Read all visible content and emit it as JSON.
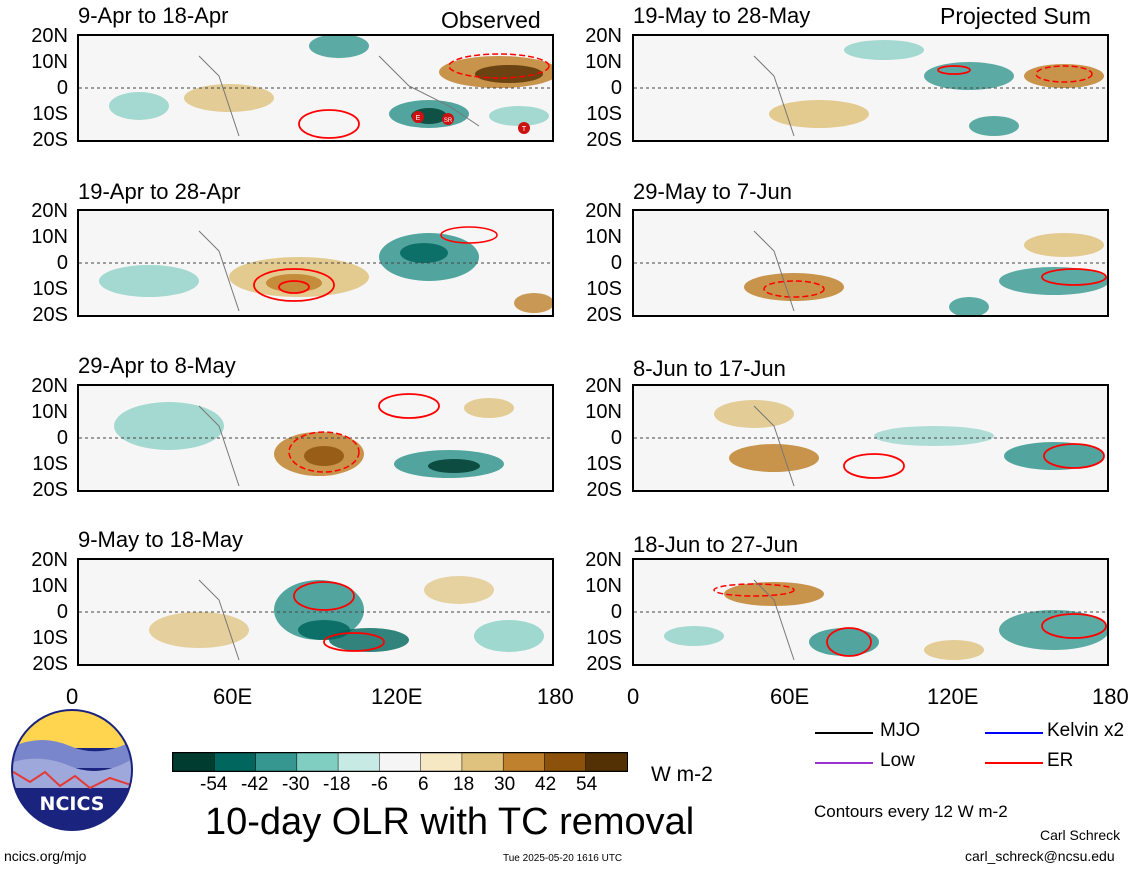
{
  "header": {
    "observed": "Observed",
    "projected": "Projected Sum"
  },
  "panels_left": [
    {
      "title": "9-Apr to 18-Apr"
    },
    {
      "title": "19-Apr to 28-Apr"
    },
    {
      "title": "29-Apr to 8-May"
    },
    {
      "title": "9-May to 18-May"
    }
  ],
  "panels_right": [
    {
      "title": "19-May to 28-May"
    },
    {
      "title": "29-May to 7-Jun"
    },
    {
      "title": "8-Jun to 17-Jun"
    },
    {
      "title": "18-Jun to 27-Jun"
    }
  ],
  "lat_labels": [
    "20N",
    "10N",
    "0",
    "10S",
    "20S"
  ],
  "lon_labels": [
    "0",
    "60E",
    "120E",
    "180"
  ],
  "tc_markers": [
    "E",
    "SR",
    "T"
  ],
  "colorbar": {
    "ticks": [
      "-54",
      "-42",
      "-30",
      "-18",
      "-6",
      "6",
      "18",
      "30",
      "42",
      "54"
    ],
    "colors": [
      "#003c30",
      "#01665e",
      "#35978f",
      "#80cdc1",
      "#c7eae5",
      "#f5f5f5",
      "#f6e8c3",
      "#dfc27d",
      "#bf812d",
      "#8c510a",
      "#543005"
    ],
    "unit": "W m-2"
  },
  "main_title": "10-day OLR with TC removal",
  "legend": {
    "items": [
      {
        "label": "MJO",
        "color": "#000000"
      },
      {
        "label": "Kelvin x2",
        "color": "#0000ff"
      },
      {
        "label": "Low",
        "color": "#9933cc"
      },
      {
        "label": "ER",
        "color": "#ff0000"
      }
    ],
    "contour_note": "Contours every 12 W m-2"
  },
  "logo_text": "NCICS",
  "footer": {
    "url": "ncics.org/mjo",
    "timestamp": "Tue 2025-05-20 1616 UTC",
    "author": "Carl Schreck",
    "email": "carl_schreck@ncsu.edu"
  }
}
